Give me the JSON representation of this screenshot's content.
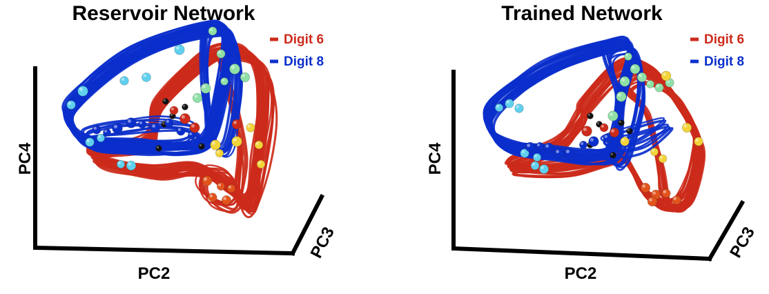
{
  "chart_data": [
    {
      "type": "line",
      "title": "Reservoir Network",
      "axes": {
        "x": "PC2",
        "y": "PC4",
        "z": "PC3"
      },
      "legend": {
        "placement": "top-right"
      },
      "grid": false,
      "series": [
        {
          "name": "Digit 6",
          "color": "#cc2a1a"
        },
        {
          "name": "Digit 8",
          "color": "#0b2fcc"
        }
      ]
    },
    {
      "type": "line",
      "title": "Trained Network",
      "axes": {
        "x": "PC2",
        "y": "PC4",
        "z": "PC3"
      },
      "legend": {
        "placement": "top-right"
      },
      "grid": false,
      "series": [
        {
          "name": "Digit 6",
          "color": "#cc2a1a"
        },
        {
          "name": "Digit 8",
          "color": "#0b2fcc"
        }
      ]
    }
  ],
  "colors": {
    "digit6": "#cc2a1a",
    "digit8": "#0b2fcc",
    "marker_cyan": "#5fd0ee",
    "marker_green": "#8fe0a6",
    "marker_yellow": "#f2d43a",
    "marker_orange": "#e2541c",
    "marker_black": "#111111"
  }
}
